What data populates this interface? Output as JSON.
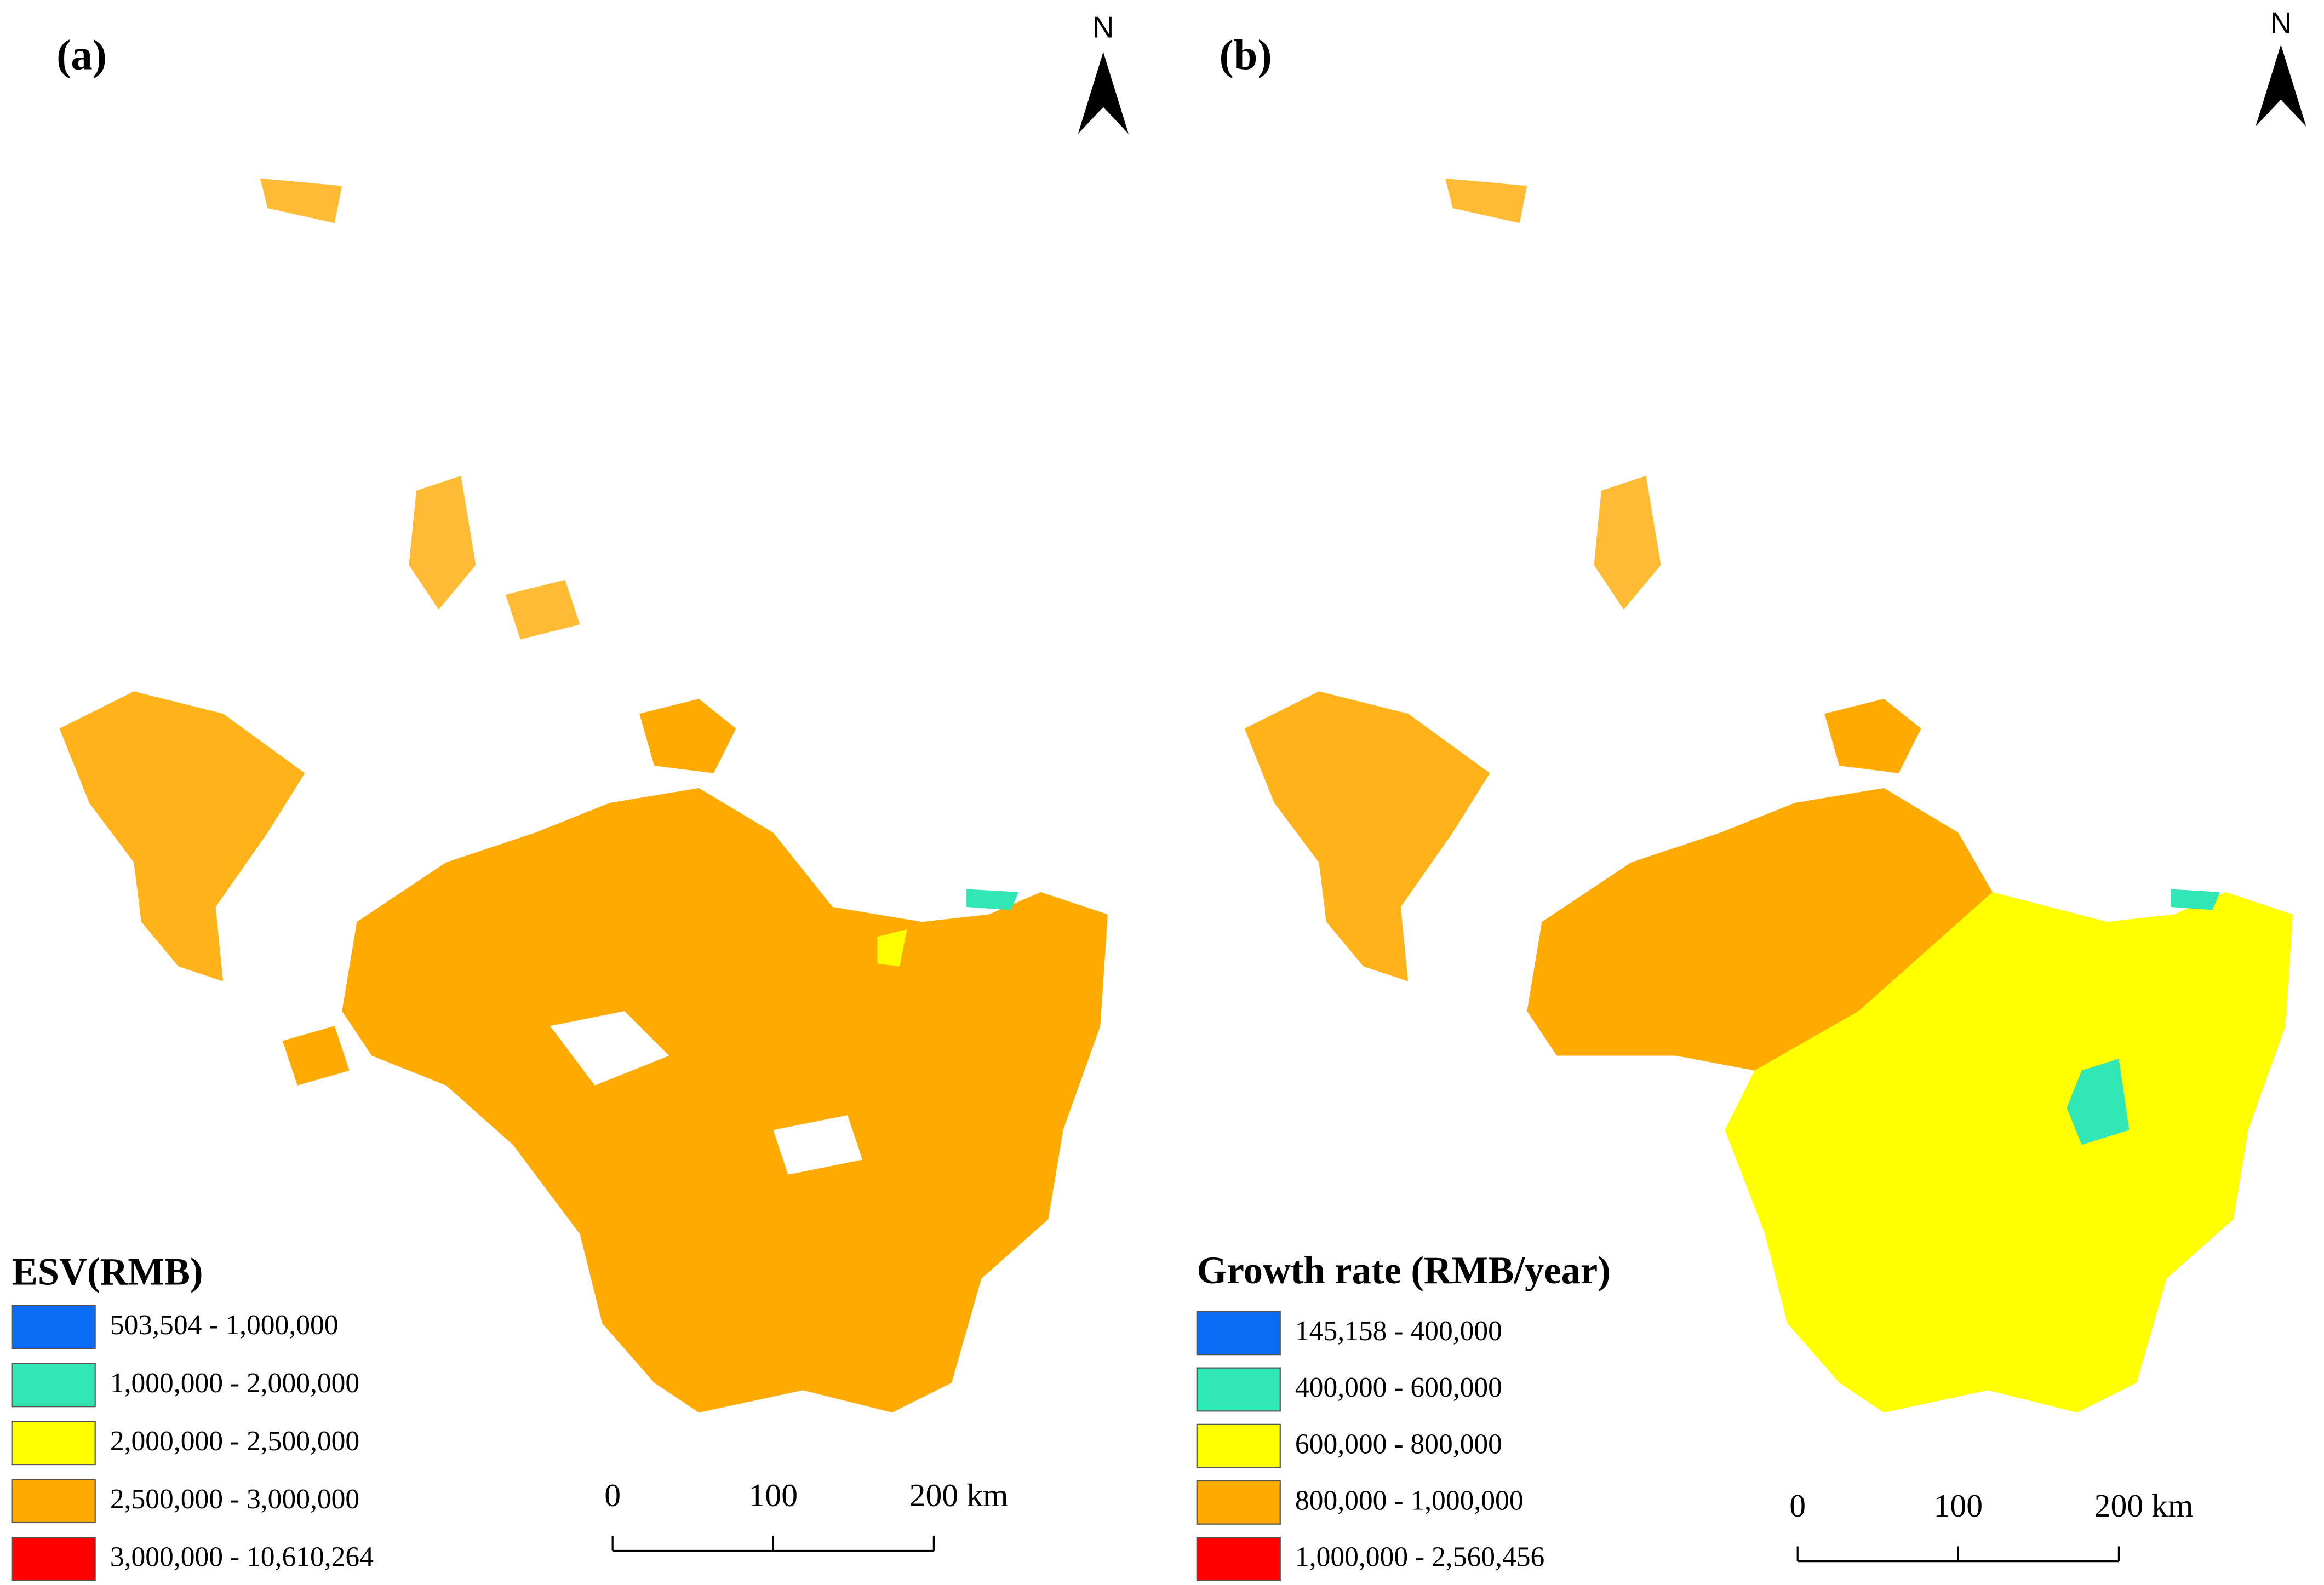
{
  "panels": [
    {
      "label": "(a)",
      "north": "N",
      "legend": {
        "title": "ESV(RMB)",
        "items": [
          {
            "label": "503,504 - 1,000,000",
            "color": "#0a6cf5"
          },
          {
            "label": "1,000,000 - 2,000,000",
            "color": "#30e6b4"
          },
          {
            "label": "2,000,000 - 2,500,000",
            "color": "#ffff00"
          },
          {
            "label": "2,500,000 - 3,000,000",
            "color": "#ffaa00"
          },
          {
            "label": "3,000,000 - 10,610,264",
            "color": "#ff0000"
          }
        ]
      },
      "scale_bar": {
        "ticks": [
          0,
          100,
          200
        ],
        "unit": "km"
      }
    },
    {
      "label": "(b)",
      "north": "N",
      "legend": {
        "title": "Growth rate (RMB/year)",
        "items": [
          {
            "label": "145,158 - 400,000",
            "color": "#0a6cf5"
          },
          {
            "label": "400,000 - 600,000",
            "color": "#30e6b4"
          },
          {
            "label": "600,000 - 800,000",
            "color": "#ffff00"
          },
          {
            "label": "800,000 - 1,000,000",
            "color": "#ffaa00"
          },
          {
            "label": "1,000,000 - 2,560,456",
            "color": "#ff0000"
          }
        ]
      },
      "scale_bar": {
        "ticks": [
          0,
          100,
          200
        ],
        "unit": "km"
      }
    }
  ]
}
